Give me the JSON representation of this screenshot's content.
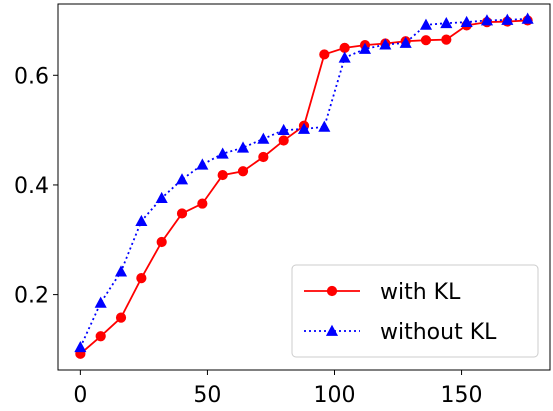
{
  "chart_data": {
    "type": "line",
    "title": "",
    "xlabel": "",
    "ylabel": "",
    "xlim": [
      -8.8,
      184.8
    ],
    "ylim": [
      0.0625,
      0.73
    ],
    "xticks": [
      0,
      50,
      100,
      150
    ],
    "yticks": [
      0.2,
      0.4,
      0.6
    ],
    "xtick_labels": [
      "0",
      "50",
      "100",
      "150"
    ],
    "ytick_labels": [
      "0.2",
      "0.4",
      "0.6"
    ],
    "grid": false,
    "legend_position": "lower-right",
    "series": [
      {
        "name": "with KL",
        "color": "#ff0000",
        "line_style": "solid",
        "marker": "circle",
        "x": [
          0,
          8,
          16,
          24,
          32,
          40,
          48,
          56,
          64,
          72,
          80,
          88,
          96,
          104,
          112,
          120,
          128,
          136,
          144,
          152,
          160,
          168,
          176
        ],
        "y": [
          0.092,
          0.124,
          0.158,
          0.23,
          0.296,
          0.348,
          0.366,
          0.418,
          0.425,
          0.451,
          0.481,
          0.508,
          0.638,
          0.65,
          0.655,
          0.658,
          0.662,
          0.664,
          0.665,
          0.691,
          0.697,
          0.698,
          0.7
        ]
      },
      {
        "name": "without KL",
        "color": "#0000ff",
        "line_style": "dotted",
        "marker": "triangle",
        "x": [
          0,
          8,
          16,
          24,
          32,
          40,
          48,
          56,
          64,
          72,
          80,
          88,
          96,
          104,
          112,
          120,
          128,
          136,
          144,
          152,
          160,
          168,
          176
        ],
        "y": [
          0.104,
          0.185,
          0.242,
          0.334,
          0.376,
          0.41,
          0.437,
          0.457,
          0.468,
          0.484,
          0.5,
          0.502,
          0.506,
          0.632,
          0.648,
          0.656,
          0.659,
          0.692,
          0.695,
          0.697,
          0.7,
          0.701,
          0.703
        ]
      }
    ]
  }
}
